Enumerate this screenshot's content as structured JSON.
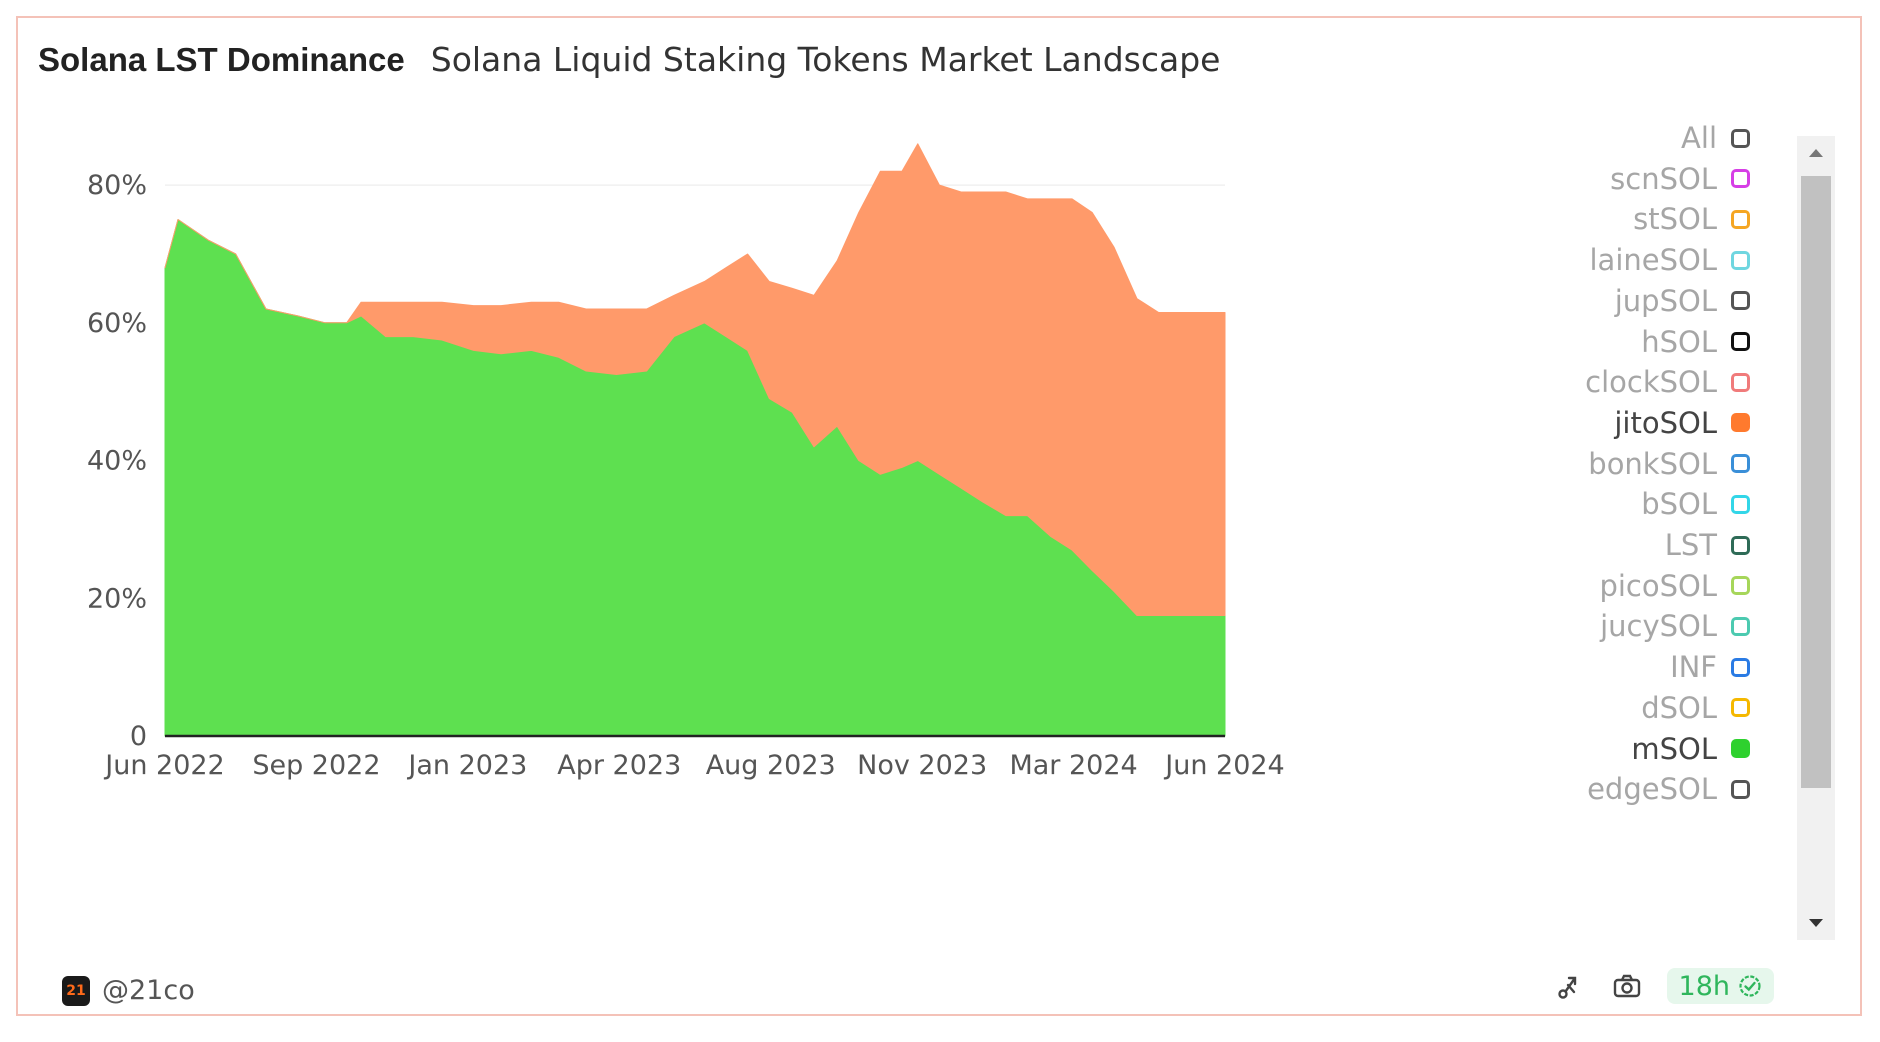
{
  "header": {
    "title": "Solana LST Dominance",
    "subtitle": "Solana Liquid Staking Tokens Market Landscape"
  },
  "chart_data": {
    "type": "area",
    "stacked": true,
    "grid": true,
    "legend_position": "right",
    "x_labels": [
      "Jun 2022",
      "Sep 2022",
      "Jan 2023",
      "Apr 2023",
      "Aug 2023",
      "Nov 2023",
      "Mar 2024",
      "Jun 2024"
    ],
    "y_ticks": [
      {
        "value": 0,
        "label": "0"
      },
      {
        "value": 20,
        "label": "20%"
      },
      {
        "value": 40,
        "label": "40%"
      },
      {
        "value": 60,
        "label": "60%"
      },
      {
        "value": 80,
        "label": "80%"
      }
    ],
    "ylim": [
      0,
      88
    ],
    "x": [
      "2022-06-01",
      "2022-06-10",
      "2022-07-01",
      "2022-07-20",
      "2022-08-10",
      "2022-09-01",
      "2022-09-20",
      "2022-10-05",
      "2022-10-15",
      "2022-11-01",
      "2022-11-20",
      "2022-12-10",
      "2023-01-01",
      "2023-01-20",
      "2023-02-10",
      "2023-03-01",
      "2023-03-20",
      "2023-04-10",
      "2023-05-01",
      "2023-05-20",
      "2023-06-10",
      "2023-06-25",
      "2023-07-10",
      "2023-07-25",
      "2023-08-10",
      "2023-08-25",
      "2023-09-10",
      "2023-09-25",
      "2023-10-10",
      "2023-10-25",
      "2023-11-05",
      "2023-11-20",
      "2023-12-05",
      "2023-12-20",
      "2024-01-05",
      "2024-01-20",
      "2024-02-05",
      "2024-02-20",
      "2024-03-05",
      "2024-03-20",
      "2024-04-05",
      "2024-04-20",
      "2024-05-05",
      "2024-05-20",
      "2024-06-05"
    ],
    "series": [
      {
        "name": "mSOL",
        "color": "#5ee050",
        "values": [
          68,
          75,
          72,
          70,
          62,
          61,
          60,
          60,
          61,
          58,
          58,
          57.5,
          56,
          55.5,
          56,
          55,
          53,
          52.5,
          53,
          58,
          60,
          58,
          56,
          49,
          47,
          42,
          45,
          40,
          38,
          39,
          40,
          38,
          36,
          34,
          32,
          32,
          29,
          27,
          24,
          21,
          17.5,
          17.5,
          17.5,
          17.5,
          17.5
        ]
      },
      {
        "name": "jitoSOL",
        "color": "#ff9a6a",
        "values": [
          0,
          0,
          0,
          0,
          0,
          0,
          0,
          0,
          2,
          5,
          5,
          5.5,
          6.5,
          7,
          7,
          8,
          9,
          9.5,
          9,
          6,
          6,
          10,
          14,
          17,
          18,
          22,
          24,
          36,
          44,
          43,
          46,
          42,
          43,
          45,
          47,
          46,
          49,
          51,
          52,
          50,
          46,
          44,
          44,
          44,
          44
        ]
      }
    ]
  },
  "legend": [
    {
      "label": "All",
      "color": "#555555",
      "active": false
    },
    {
      "label": "scnSOL",
      "color": "#d63ee6",
      "active": false
    },
    {
      "label": "stSOL",
      "color": "#f5a623",
      "active": false
    },
    {
      "label": "laineSOL",
      "color": "#6fd6e0",
      "active": false
    },
    {
      "label": "jupSOL",
      "color": "#555555",
      "active": false
    },
    {
      "label": "hSOL",
      "color": "#111111",
      "active": false
    },
    {
      "label": "clockSOL",
      "color": "#f07b7b",
      "active": false
    },
    {
      "label": "jitoSOL",
      "color": "#ff7a2e",
      "active": true
    },
    {
      "label": "bonkSOL",
      "color": "#3a8fd8",
      "active": false
    },
    {
      "label": "bSOL",
      "color": "#32d6e8",
      "active": false
    },
    {
      "label": "LST",
      "color": "#2e6b57",
      "active": false
    },
    {
      "label": "picoSOL",
      "color": "#a6d65a",
      "active": false
    },
    {
      "label": "jucySOL",
      "color": "#4ccab0",
      "active": false
    },
    {
      "label": "INF",
      "color": "#2a7be4",
      "active": false
    },
    {
      "label": "dSOL",
      "color": "#f5b800",
      "active": false
    },
    {
      "label": "mSOL",
      "color": "#2ed12e",
      "active": true
    },
    {
      "label": "edgeSOL",
      "color": "#555555",
      "active": false
    }
  ],
  "footer": {
    "logo_text": "21",
    "handle": "@21co",
    "refresh": "18h"
  }
}
